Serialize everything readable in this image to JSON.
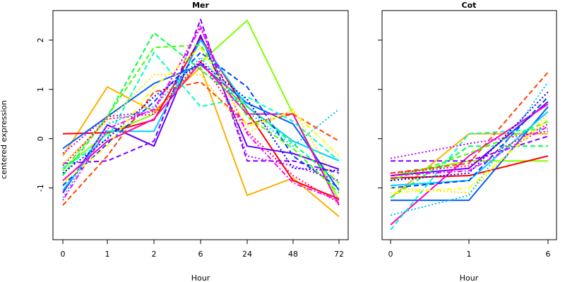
{
  "ylabel": "centered expression",
  "chart_data": [
    {
      "type": "line",
      "title": "Mer",
      "xlabel": "Hour",
      "ylabel": "centered expression",
      "categories": [
        "0",
        "1",
        "2",
        "6",
        "24",
        "48",
        "72"
      ],
      "y_ticks": [
        -1,
        0,
        1,
        2
      ],
      "ylim": [
        -2.05,
        2.6
      ],
      "grid": false,
      "series": [
        {
          "color": "#ffb000",
          "dash": "solid",
          "values": [
            -0.35,
            1.05,
            0.55,
            1.45,
            -1.15,
            -0.8,
            -1.58
          ]
        },
        {
          "color": "#80ff00",
          "dash": "solid",
          "values": [
            -0.6,
            0.1,
            0.5,
            1.55,
            2.4,
            0.5,
            -1.25
          ]
        },
        {
          "color": "#ff0000",
          "dash": "solid",
          "values": [
            0.1,
            0.12,
            0.38,
            2.05,
            0.55,
            -0.85,
            -1.22
          ]
        },
        {
          "color": "#0060ff",
          "dash": "solid",
          "values": [
            -0.2,
            0.45,
            1.12,
            1.5,
            0.72,
            0.3,
            -1.05
          ]
        },
        {
          "color": "#6000ff",
          "dash": "solid",
          "values": [
            -1.1,
            0.28,
            -0.15,
            2.1,
            -0.15,
            -0.3,
            -0.62
          ]
        },
        {
          "color": "#00d0ff",
          "dash": "solid",
          "values": [
            -1.05,
            0.15,
            0.15,
            2.0,
            0.65,
            -0.05,
            -0.45
          ]
        },
        {
          "color": "#ff00c0",
          "dash": "solid",
          "values": [
            -0.85,
            -0.05,
            0.4,
            1.55,
            0.5,
            0.5,
            -1.35
          ]
        },
        {
          "color": "#8000ff",
          "dash": "dashed",
          "values": [
            -0.5,
            -0.45,
            -0.05,
            2.42,
            -0.45,
            -0.45,
            -0.7
          ]
        },
        {
          "color": "#00ff40",
          "dash": "dashed",
          "values": [
            -0.75,
            0.45,
            2.15,
            1.4,
            0.65,
            -0.1,
            -0.9
          ]
        },
        {
          "color": "#0040ff",
          "dash": "dashed",
          "values": [
            -0.95,
            -0.1,
            0.75,
            1.75,
            1.05,
            -0.35,
            -1.0
          ]
        },
        {
          "color": "#ff4000",
          "dash": "dashed",
          "values": [
            -1.35,
            -0.35,
            0.95,
            1.15,
            0.3,
            0.5,
            -0.05
          ]
        },
        {
          "color": "#40ff00",
          "dash": "dashed",
          "values": [
            -0.65,
            0.45,
            1.85,
            1.9,
            0.45,
            -0.2,
            -1.1
          ]
        },
        {
          "color": "#00ffc0",
          "dash": "dashed",
          "values": [
            -0.6,
            0.0,
            1.75,
            0.65,
            0.85,
            0.35,
            -0.45
          ]
        },
        {
          "color": "#ffe000",
          "dash": "dotted",
          "values": [
            -0.5,
            0.35,
            1.3,
            1.3,
            0.1,
            0.6,
            -0.95
          ]
        },
        {
          "color": "#00c0ff",
          "dash": "dotted",
          "values": [
            -1.2,
            0.3,
            0.65,
            1.65,
            0.55,
            -0.15,
            0.6
          ]
        },
        {
          "color": "#c000ff",
          "dash": "dotted",
          "values": [
            -0.3,
            0.45,
            0.55,
            2.3,
            -0.35,
            -0.55,
            -0.85
          ]
        },
        {
          "color": "#ff0080",
          "dash": "dotted",
          "values": [
            -0.55,
            0.4,
            0.5,
            1.6,
            0.15,
            -0.75,
            -1.3
          ]
        },
        {
          "color": "#0000ff",
          "dash": "dotted",
          "values": [
            -0.7,
            0.0,
            0.85,
            1.55,
            0.8,
            -0.6,
            -0.65
          ]
        },
        {
          "color": "#ff00ff",
          "dash": "dotdash",
          "values": [
            -1.25,
            0.2,
            0.6,
            2.25,
            0.1,
            -0.9,
            -1.25
          ]
        },
        {
          "color": "#ffff00",
          "dash": "dotdash",
          "values": [
            -0.9,
            -0.15,
            1.05,
            1.85,
            0.25,
            0.55,
            -0.35
          ]
        }
      ]
    },
    {
      "type": "line",
      "title": "Cot",
      "xlabel": "Hour",
      "categories": [
        "0",
        "1",
        "6"
      ],
      "ylim": [
        -2.05,
        2.6
      ],
      "grid": false,
      "series": [
        {
          "color": "#ffb000",
          "dash": "solid",
          "values": [
            -1.2,
            0.1,
            0.1
          ]
        },
        {
          "color": "#80ff00",
          "dash": "solid",
          "values": [
            -0.75,
            -0.45,
            -0.45
          ]
        },
        {
          "color": "#ff0000",
          "dash": "solid",
          "values": [
            -0.8,
            -0.75,
            -0.35
          ]
        },
        {
          "color": "#0060ff",
          "dash": "solid",
          "values": [
            -1.25,
            -1.25,
            0.65
          ]
        },
        {
          "color": "#6000ff",
          "dash": "solid",
          "values": [
            -0.75,
            -0.6,
            0.75
          ]
        },
        {
          "color": "#00d0ff",
          "dash": "solid",
          "values": [
            -0.95,
            -0.85,
            0.55
          ]
        },
        {
          "color": "#ff00c0",
          "dash": "solid",
          "values": [
            -1.75,
            -0.35,
            0.7
          ]
        },
        {
          "color": "#8000ff",
          "dash": "dashed",
          "values": [
            -0.45,
            -0.45,
            0.05
          ]
        },
        {
          "color": "#00ff40",
          "dash": "dashed",
          "values": [
            -1.2,
            -0.15,
            -0.15
          ]
        },
        {
          "color": "#0040ff",
          "dash": "dashed",
          "values": [
            -1.0,
            -0.85,
            0.85
          ]
        },
        {
          "color": "#ff4000",
          "dash": "dashed",
          "values": [
            -0.7,
            -0.5,
            1.35
          ]
        },
        {
          "color": "#40ff00",
          "dash": "dashed",
          "values": [
            -0.85,
            -0.3,
            0.35
          ]
        },
        {
          "color": "#00ffc0",
          "dash": "dashed",
          "values": [
            -1.85,
            0.1,
            0.2
          ]
        },
        {
          "color": "#ffe000",
          "dash": "dotted",
          "values": [
            -1.0,
            -1.1,
            0.5
          ]
        },
        {
          "color": "#00c0ff",
          "dash": "dotted",
          "values": [
            -1.55,
            -1.15,
            1.15
          ]
        },
        {
          "color": "#c000ff",
          "dash": "dotted",
          "values": [
            -0.4,
            -0.1,
            0.15
          ]
        },
        {
          "color": "#ff0080",
          "dash": "dotted",
          "values": [
            -0.7,
            -0.55,
            0.3
          ]
        },
        {
          "color": "#0000ff",
          "dash": "dotted",
          "values": [
            -0.85,
            -0.7,
            0.95
          ]
        },
        {
          "color": "#ff00ff",
          "dash": "dotdash",
          "values": [
            -0.75,
            -0.65,
            0.25
          ]
        },
        {
          "color": "#ffff00",
          "dash": "dotdash",
          "values": [
            -1.1,
            -1.0,
            0.4
          ]
        }
      ]
    }
  ]
}
